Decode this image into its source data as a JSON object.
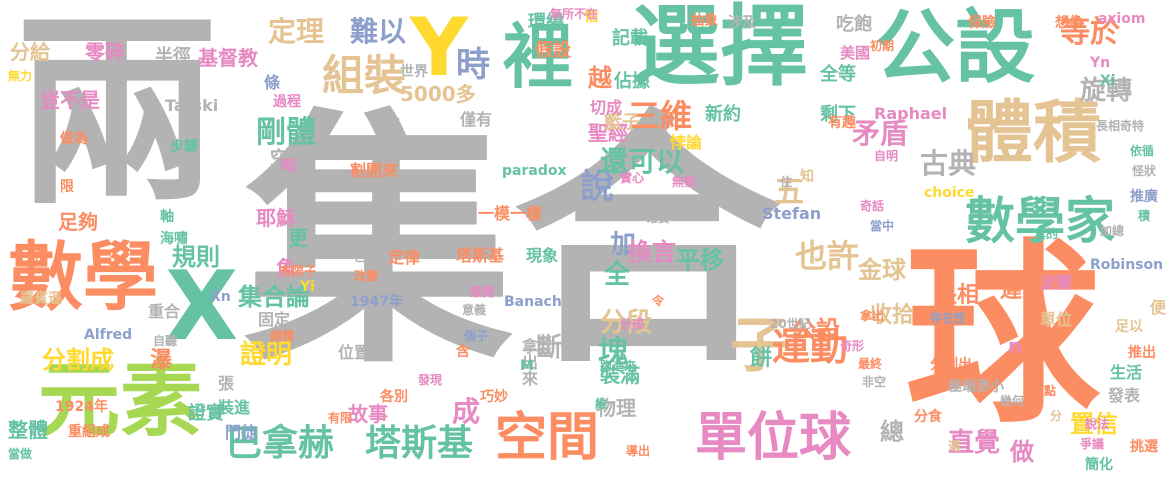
{
  "colors": {
    "gray": "#b3b3b3",
    "orange": "#fc8d62",
    "teal": "#66c2a5",
    "blue": "#8da0cb",
    "pink": "#e78ac3",
    "green": "#a6d854",
    "yellow": "#ffd92f",
    "tan": "#e5c494"
  },
  "words": [
    "集合",
    "兩",
    "球",
    "選擇",
    "公設",
    "體積",
    "元素",
    "數學",
    "裡",
    "X",
    "Y",
    "數學家",
    "空間",
    "單位球",
    "子",
    "運動",
    "組裝",
    "巴拿赫",
    "塔斯基",
    "定理",
    "難以",
    "時",
    "等於",
    "旋轉",
    "說",
    "三維",
    "矛盾",
    "剛體",
    "古典",
    "還可以",
    "五",
    "也許",
    "平移",
    "金球",
    "規則",
    "集合論",
    "分割成",
    "證明",
    "斷言",
    "分段",
    "全",
    "加",
    "換言",
    "收拾",
    "長相",
    "違反",
    "置信",
    "直覺",
    "做",
    "總",
    "成",
    "故事",
    "物理",
    "塊",
    "裝滿",
    "餅",
    "公設",
    "5000多",
    "越",
    "記載",
    "佔據",
    "聖經",
    "籃子",
    "新約",
    "剩下",
    "全等",
    "吃飽",
    "美國",
    "分給",
    "零碎",
    "基督教",
    "半徑",
    "世界",
    "足夠",
    "耶穌",
    "魚",
    "更",
    "空間",
    "割開來",
    "巴拿赫",
    "一模一樣",
    "塔斯基",
    "現象",
    "定律",
    "包容",
    "Tarski",
    "paradox",
    "Stefan",
    "Raphael",
    "Robinson",
    "Banach",
    "Alfred",
    "1947年",
    "1924年",
    "20世紀",
    "分割出",
    "生活",
    "發表",
    "挑選",
    "幾何",
    "單位",
    "波蘭",
    "便",
    "足以",
    "推出",
    "整體",
    "重組成",
    "當做",
    "證實",
    "張",
    "裝進",
    "門徒",
    "位置",
    "固定",
    "重合",
    "羅賓遜",
    "軸",
    "海嘯",
    "稱",
    "有限子",
    "環繞",
    "怕",
    "無所不在",
    "假設",
    "抽象",
    "涉及",
    "保險",
    "想像",
    "axiom",
    "choice",
    "Yn",
    "Xi",
    "Xn",
    "Yi",
    "豈不是",
    "過程",
    "做為",
    "吃",
    "僅有",
    "條",
    "喝",
    "切成",
    "悖論",
    "有趣",
    "長相奇特",
    "依循",
    "怪狀",
    "推廣",
    "積",
    "極端渺小",
    "存在性",
    "最終",
    "非空",
    "奇形",
    "拿出",
    "分成",
    "跑進來",
    "維",
    "巧妙",
    "各別",
    "發現",
    "有限",
    "分食",
    "導出",
    "說法",
    "爭議",
    "簡化",
    "實心",
    "無窮",
    "知",
    "住",
    "令",
    "確實",
    "概念",
    "意義",
    "自明",
    "初期",
    "無力",
    "總體",
    "步驟",
    "限",
    "二",
    "含",
    "撥開",
    "個子",
    "改變",
    "自聽",
    "拿出來",
    "M",
    "n",
    "三",
    "瀑",
    "點",
    "選",
    "分",
    "加總",
    "真的",
    "奇話",
    "當中",
    "分別",
    "地",
    "都"
  ]
}
